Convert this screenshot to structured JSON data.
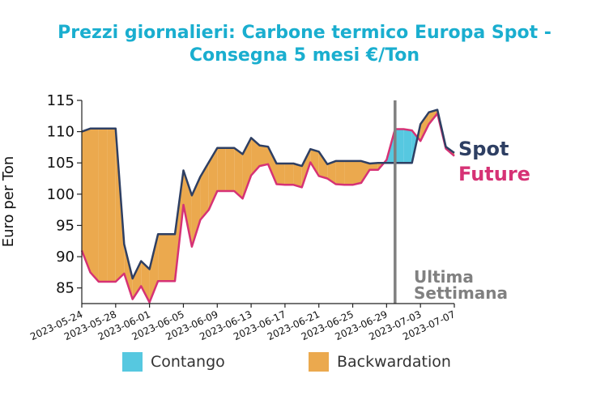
{
  "chart_data": {
    "type": "line",
    "title_lines": [
      "Prezzi giornalieri: Carbone termico Europa Spot -",
      "Consegna 5 mesi €/Ton"
    ],
    "ylabel": "Euro per Ton",
    "ylim": [
      82.5,
      115
    ],
    "yticks": [
      85,
      90,
      95,
      100,
      105,
      110,
      115
    ],
    "xlim": [
      "2023-05-24",
      "2023-07-07"
    ],
    "xticks": [
      "2023-05-24",
      "2023-05-28",
      "2023-06-01",
      "2023-06-05",
      "2023-06-09",
      "2023-06-13",
      "2023-06-17",
      "2023-06-21",
      "2023-06-25",
      "2023-06-29",
      "2023-07-03",
      "2023-07-07"
    ],
    "x": [
      "2023-05-24",
      "2023-05-25",
      "2023-05-26",
      "2023-05-27",
      "2023-05-28",
      "2023-05-29",
      "2023-05-30",
      "2023-05-31",
      "2023-06-01",
      "2023-06-02",
      "2023-06-03",
      "2023-06-04",
      "2023-06-05",
      "2023-06-06",
      "2023-06-07",
      "2023-06-08",
      "2023-06-09",
      "2023-06-10",
      "2023-06-11",
      "2023-06-12",
      "2023-06-13",
      "2023-06-14",
      "2023-06-15",
      "2023-06-16",
      "2023-06-17",
      "2023-06-18",
      "2023-06-19",
      "2023-06-20",
      "2023-06-21",
      "2023-06-22",
      "2023-06-23",
      "2023-06-24",
      "2023-06-25",
      "2023-06-26",
      "2023-06-27",
      "2023-06-28",
      "2023-06-29",
      "2023-06-30",
      "2023-07-01",
      "2023-07-02",
      "2023-07-03",
      "2023-07-04",
      "2023-07-05",
      "2023-07-06",
      "2023-07-07"
    ],
    "series": [
      {
        "name": "Spot",
        "color": "#2e3f63",
        "values": [
          110,
          110.5,
          110.5,
          110.5,
          110.5,
          92,
          86.5,
          89.3,
          88,
          93.6,
          93.6,
          93.6,
          103.8,
          99.8,
          102.8,
          105.1,
          107.4,
          107.4,
          107.4,
          106.4,
          109,
          107.8,
          107.6,
          104.9,
          104.9,
          104.9,
          104.5,
          107.2,
          106.8,
          104.8,
          105.3,
          105.3,
          105.3,
          105.3,
          104.9,
          105,
          105,
          105,
          105,
          105,
          111.2,
          113.1,
          113.5,
          107.6,
          106.6
        ]
      },
      {
        "name": "Future",
        "color": "#d63275",
        "values": [
          91,
          87.5,
          86,
          86,
          86,
          87.3,
          83.2,
          85.3,
          82.7,
          86.1,
          86.1,
          86.1,
          98.3,
          91.6,
          95.9,
          97.5,
          100.5,
          100.5,
          100.5,
          99.3,
          103,
          104.5,
          104.8,
          101.6,
          101.5,
          101.5,
          101.1,
          105.1,
          102.9,
          102.5,
          101.6,
          101.5,
          101.5,
          101.8,
          103.9,
          103.9,
          105.5,
          110.4,
          110.4,
          110.2,
          108.5,
          111.2,
          112.9,
          107.3,
          106.1
        ]
      }
    ],
    "fill_colors": {
      "contango": "#56c8e0",
      "backwardation": "#eba94e"
    },
    "legend": [
      {
        "label": "Contango",
        "color": "#56c8e0"
      },
      {
        "label": "Backwardation",
        "color": "#eba94e"
      }
    ],
    "annotation": {
      "lines": [
        "Ultima",
        "Settimana"
      ],
      "x": "2023-06-30",
      "color": "#808080"
    }
  }
}
